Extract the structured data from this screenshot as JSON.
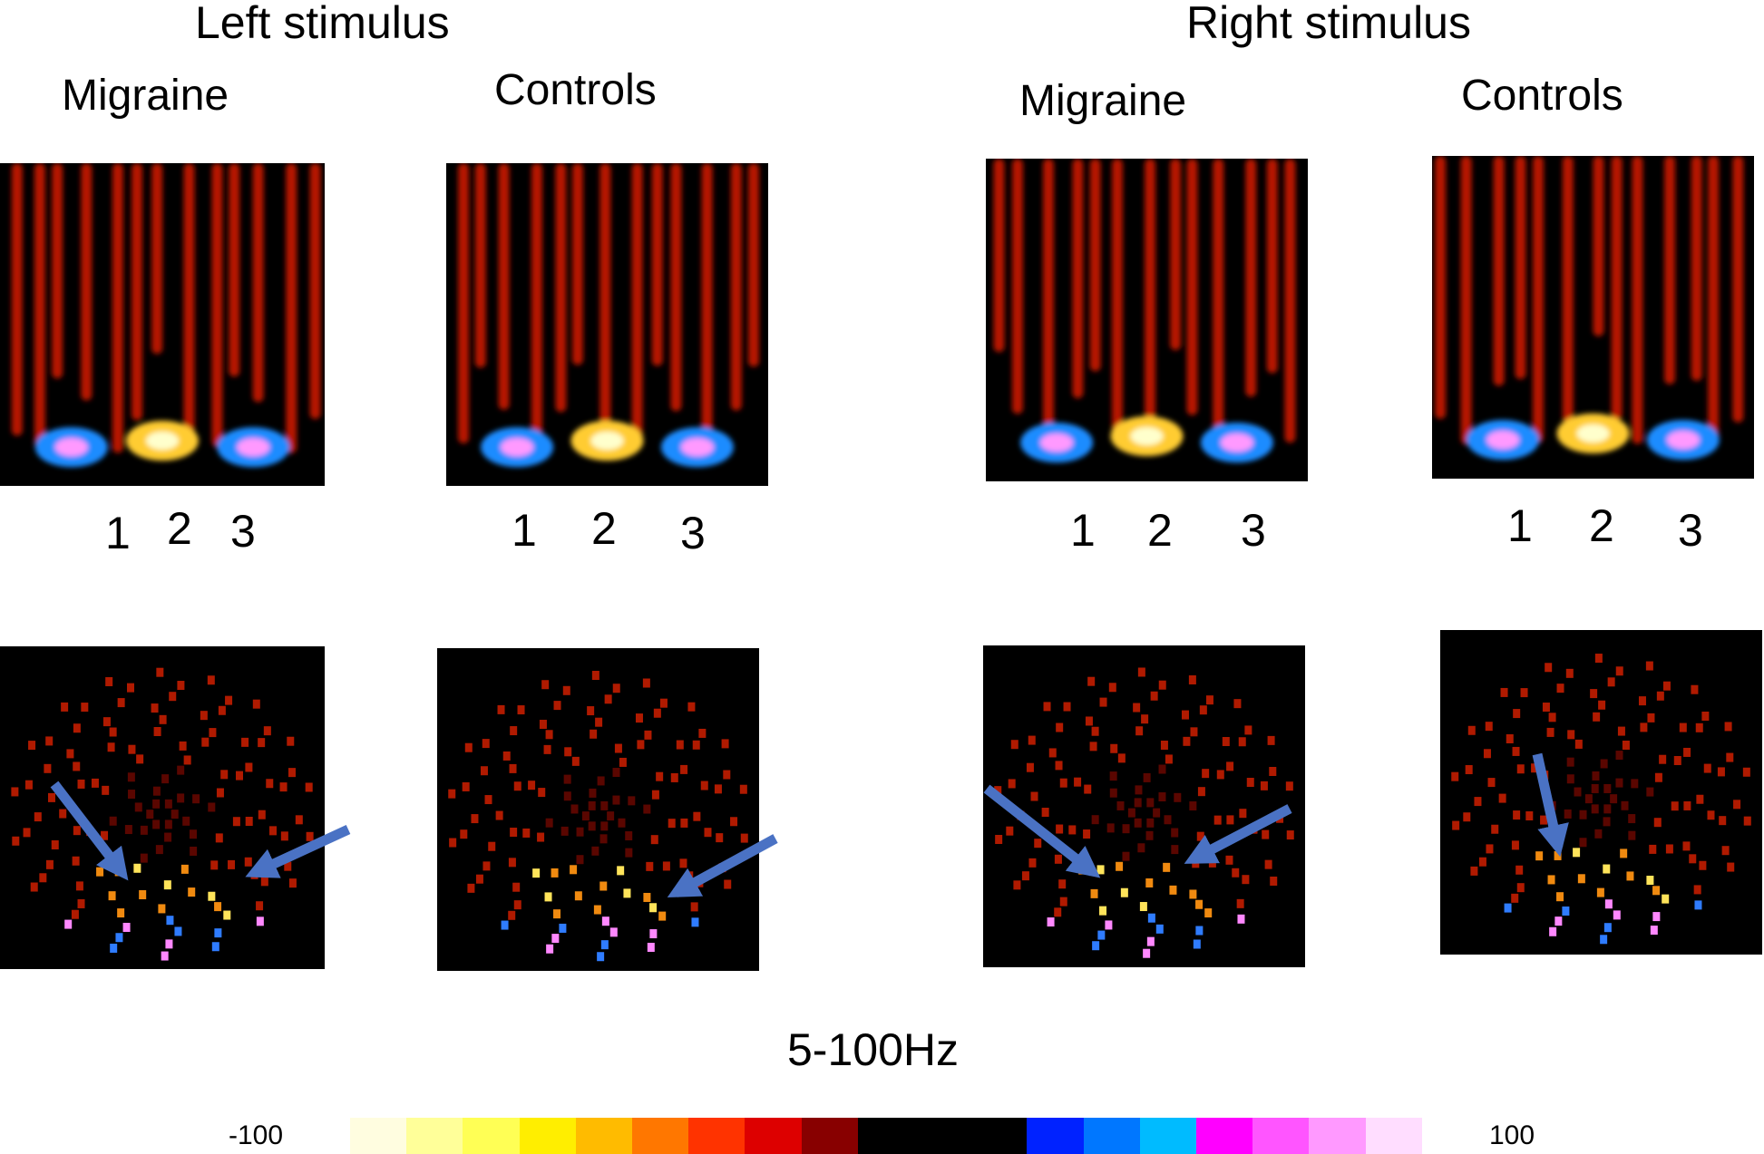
{
  "headers": {
    "left": "Left stimulus",
    "right": "Right stimulus"
  },
  "groups": {
    "left_migraine": "Migraine",
    "left_controls": "Controls",
    "right_migraine": "Migraine",
    "right_controls": "Controls"
  },
  "peak_numbers": [
    "1",
    "2",
    "3"
  ],
  "frequency_band": "5-100Hz",
  "colorbar": {
    "min_label": "-100",
    "max_label": "100",
    "colors": [
      "#fffde0",
      "#ffff99",
      "#ffff55",
      "#ffee00",
      "#ffbb00",
      "#ff7700",
      "#ff3300",
      "#dd0000",
      "#880000",
      "#000000",
      "#000000",
      "#000000",
      "#0022ff",
      "#0077ff",
      "#00bbff",
      "#ff00ff",
      "#ff55ff",
      "#ff99ff",
      "#ffddff"
    ]
  },
  "colors": {
    "arrow": "#4a72c4",
    "background": "#ffffff",
    "panel_background": "#000000"
  }
}
